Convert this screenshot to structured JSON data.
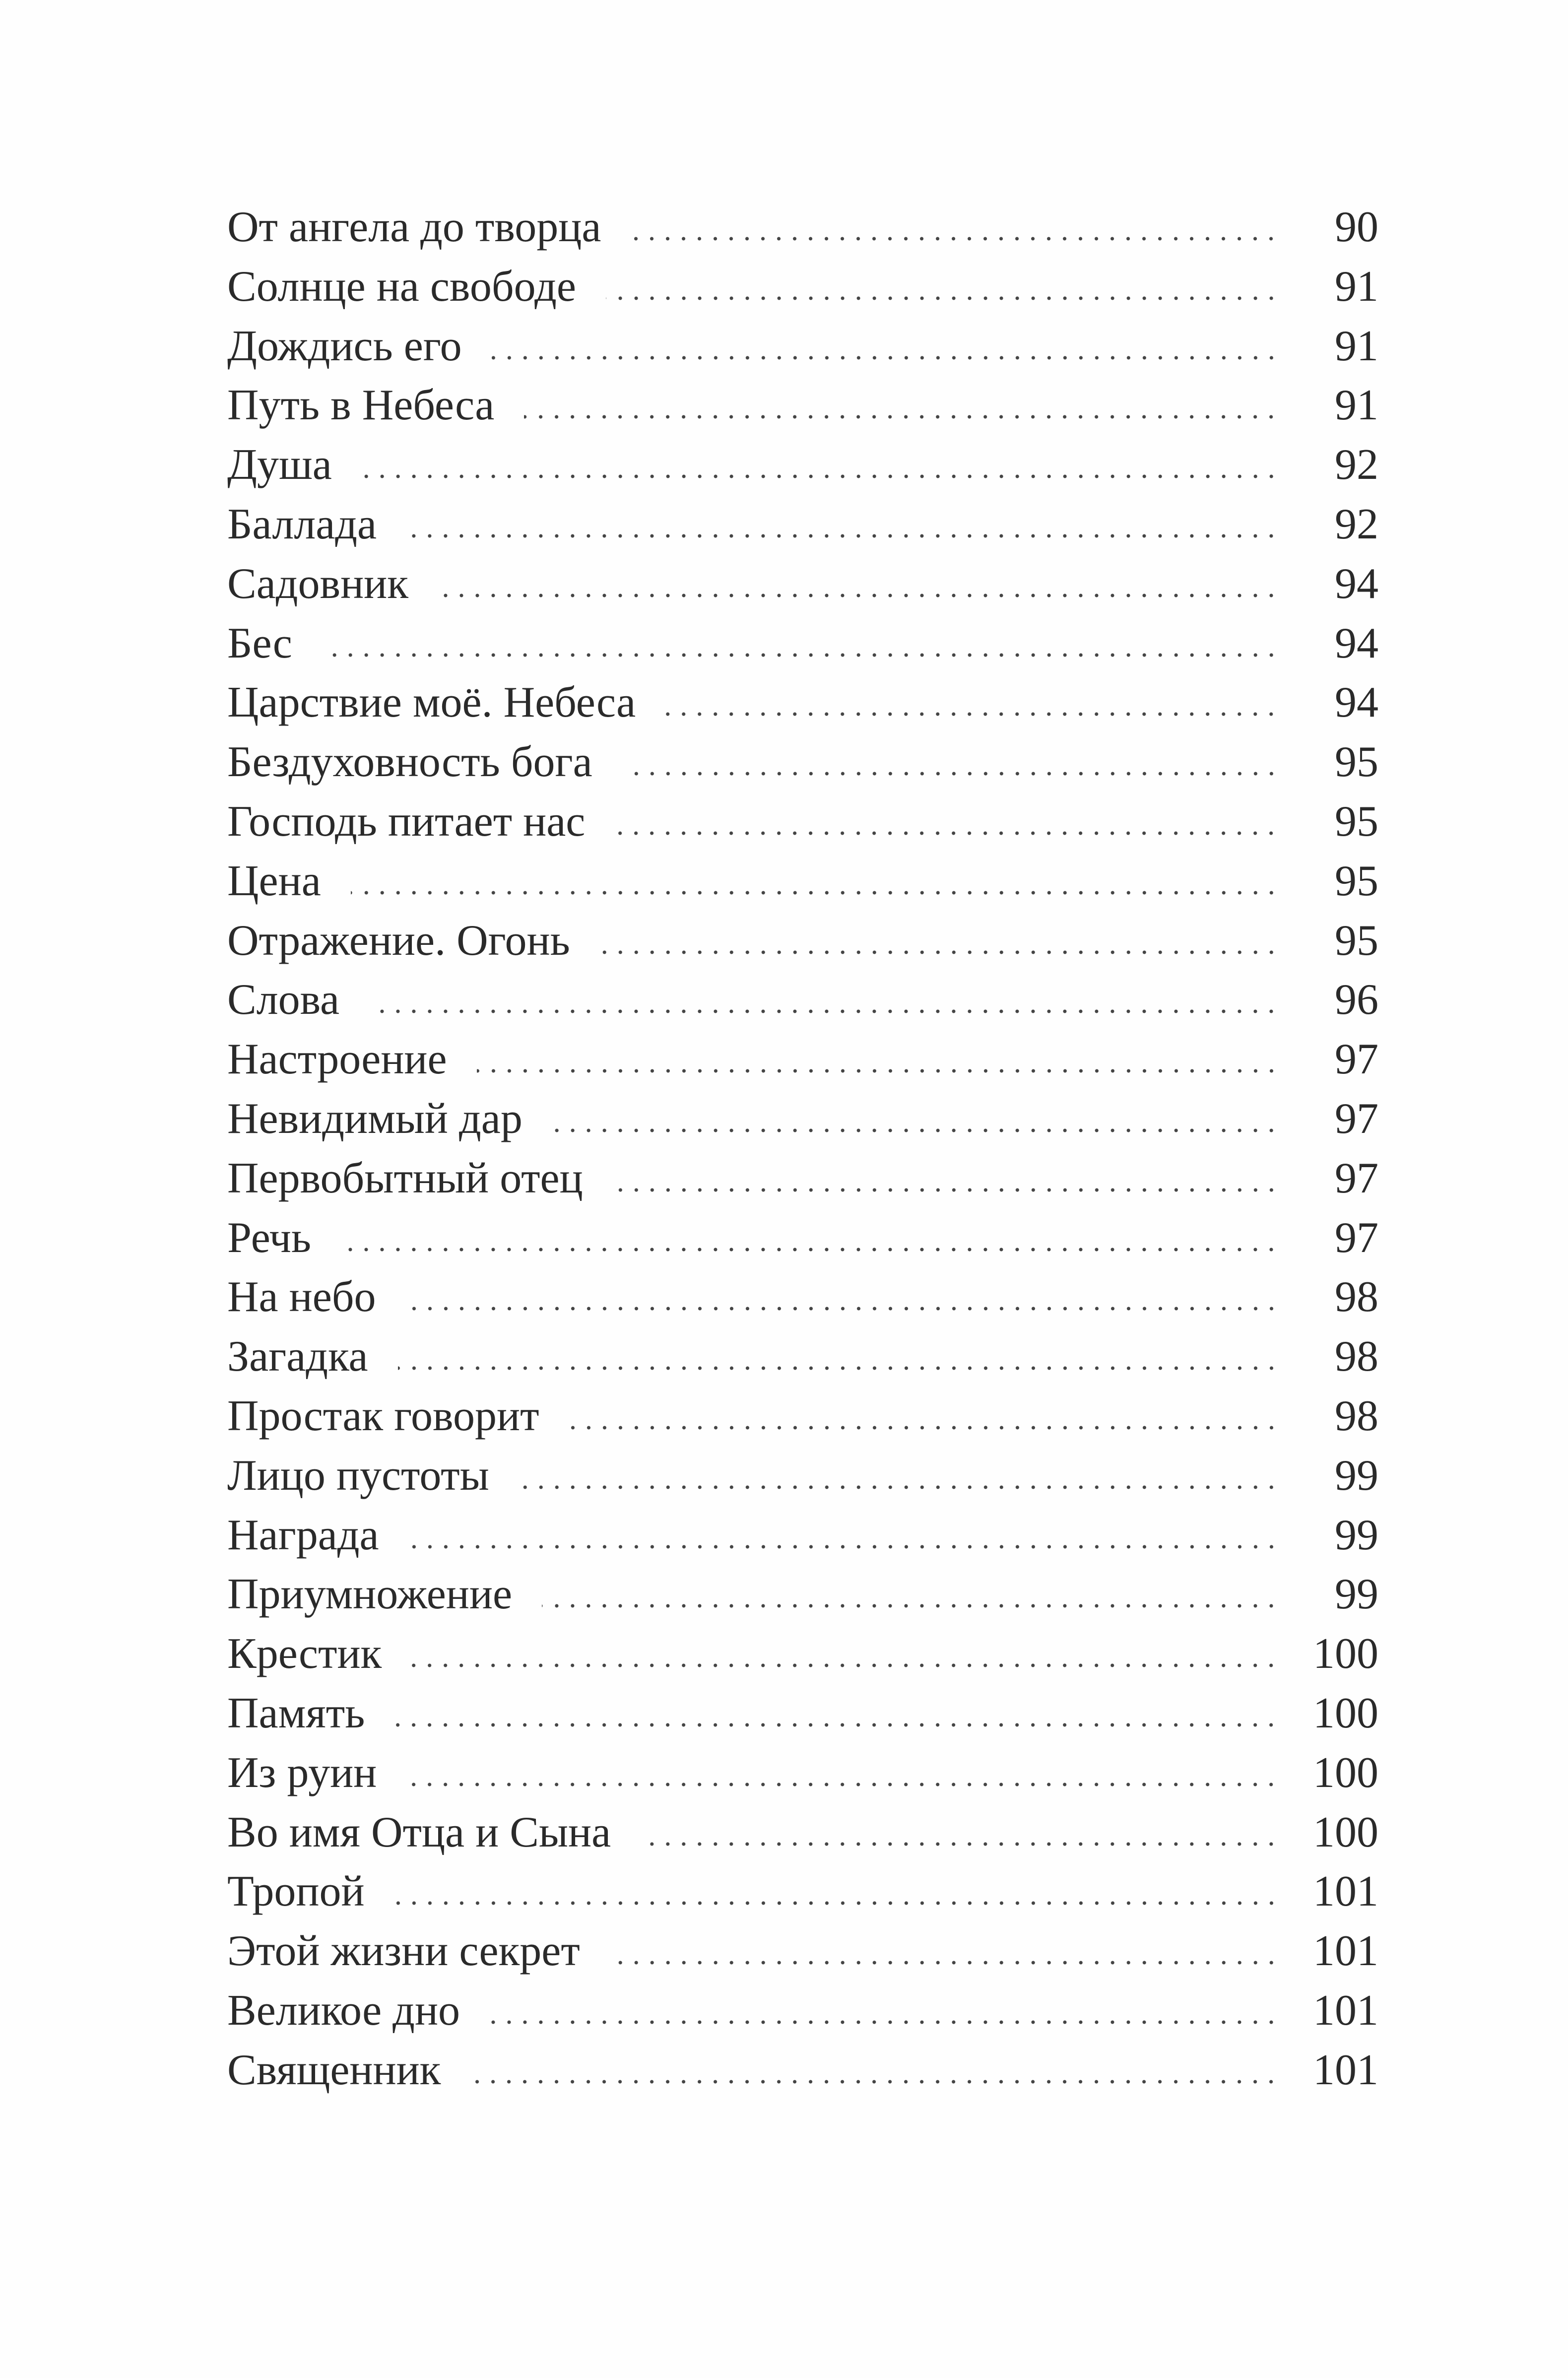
{
  "toc": [
    {
      "title": "От ангела до творца",
      "page": "90"
    },
    {
      "title": "Солнце на свободе",
      "page": "91"
    },
    {
      "title": "Дождись его",
      "page": "91"
    },
    {
      "title": "Путь в Небеса",
      "page": "91"
    },
    {
      "title": "Душа",
      "page": "92"
    },
    {
      "title": "Баллада",
      "page": "92"
    },
    {
      "title": "Садовник",
      "page": "94"
    },
    {
      "title": "Бес",
      "page": "94"
    },
    {
      "title": "Царствие моё. Небеса",
      "page": "94"
    },
    {
      "title": "Бездуховность бога",
      "page": "95"
    },
    {
      "title": "Господь питает нас",
      "page": "95"
    },
    {
      "title": "Цена",
      "page": "95"
    },
    {
      "title": "Отражение. Огонь",
      "page": "95"
    },
    {
      "title": "Слова",
      "page": "96"
    },
    {
      "title": "Настроение",
      "page": "97"
    },
    {
      "title": "Невидимый дар",
      "page": "97"
    },
    {
      "title": "Первобытный отец",
      "page": "97"
    },
    {
      "title": "Речь",
      "page": "97"
    },
    {
      "title": "На небо",
      "page": "98"
    },
    {
      "title": "Загадка",
      "page": "98"
    },
    {
      "title": "Простак говорит",
      "page": "98"
    },
    {
      "title": "Лицо пустоты",
      "page": "99"
    },
    {
      "title": "Награда",
      "page": "99"
    },
    {
      "title": "Приумножение",
      "page": "99"
    },
    {
      "title": "Крестик",
      "page": "100"
    },
    {
      "title": "Память",
      "page": "100"
    },
    {
      "title": "Из руин",
      "page": "100"
    },
    {
      "title": "Во имя Отца и Сына",
      "page": "100"
    },
    {
      "title": "Тропой",
      "page": "101"
    },
    {
      "title": "Этой жизни секрет",
      "page": "101"
    },
    {
      "title": "Великое дно",
      "page": "101"
    },
    {
      "title": "Священник",
      "page": "101"
    }
  ]
}
